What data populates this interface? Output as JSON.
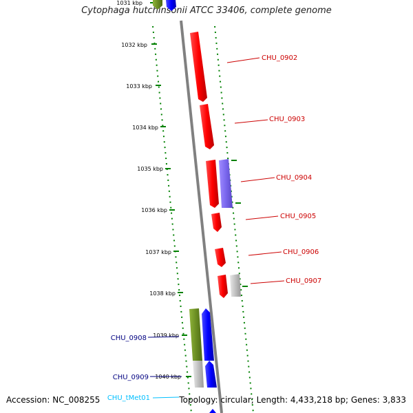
{
  "title": "Cytophaga hutchinsonii ATCC 33406, complete genome",
  "accession": "Accession: NC_008255",
  "summary": "Topology: circular; Length: 4,433,218 bp; Genes: 3,833",
  "colors": {
    "cds": "#ff0000",
    "cds_alt": "#7b68ee",
    "forward_blue": "#0000ff",
    "olive": "#6b8e23",
    "grey": "#c0c0c0",
    "ruler": "#008000",
    "backbone": "#808080",
    "gene_label": "#cc0000",
    "gene_label_blue": "#000080",
    "trna_label": "#00bfff"
  },
  "ruler_ticks": [
    "1031 kbp",
    "1032 kbp",
    "1033 kbp",
    "1034 kbp",
    "1035 kbp",
    "1036 kbp",
    "1037 kbp",
    "1038 kbp",
    "1039 kbp",
    "1040 kbp"
  ],
  "gene_labels": [
    "CHU_0902",
    "CHU_0903",
    "CHU_0904",
    "CHU_0905",
    "CHU_0906",
    "CHU_0907",
    "CHU_0908",
    "CHU_0909",
    "CHU_tMet01"
  ]
}
